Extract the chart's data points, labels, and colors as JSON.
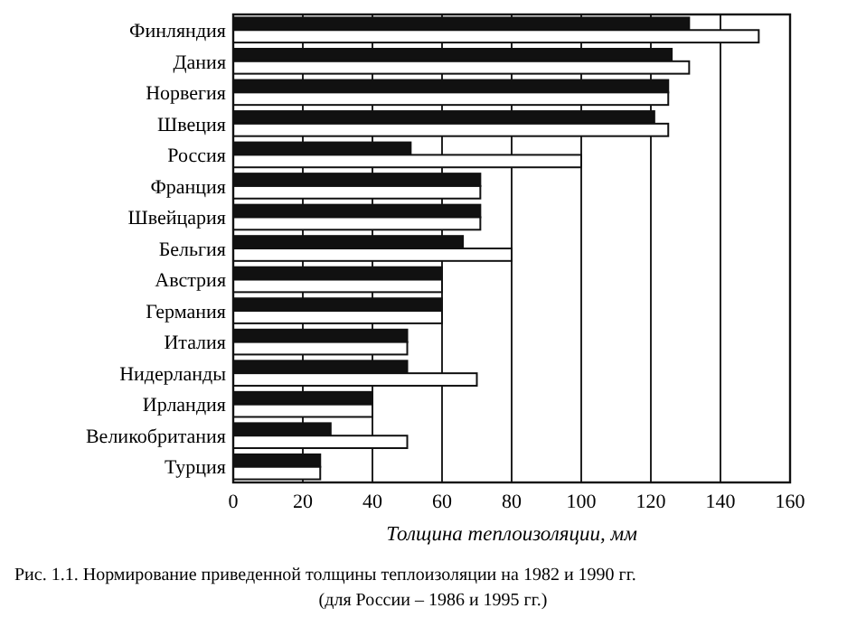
{
  "chart_data": {
    "type": "bar",
    "orientation": "horizontal",
    "categories": [
      "Финляндия",
      "Дания",
      "Норвегия",
      "Швеция",
      "Россия",
      "Франция",
      "Швейцария",
      "Бельгия",
      "Австрия",
      "Германия",
      "Италия",
      "Нидерланды",
      "Ирландия",
      "Великобритания",
      "Турция"
    ],
    "series": [
      {
        "color": "#111111",
        "values": [
          131,
          126,
          125,
          121,
          51,
          71,
          71,
          66,
          60,
          60,
          50,
          50,
          40,
          28,
          25
        ]
      },
      {
        "color": "#ffffff",
        "values": [
          151,
          131,
          125,
          125,
          100,
          71,
          71,
          80,
          60,
          60,
          50,
          70,
          40,
          50,
          25
        ]
      }
    ],
    "xlabel": "Толщина теплоизоляции, мм",
    "xlim": [
      0,
      160
    ],
    "xticks": [
      0,
      20,
      40,
      60,
      80,
      100,
      120,
      140,
      160
    ],
    "grid": "x",
    "annotations": [
      "Рис. 1.1. Нормирование приведенной толщины теплоизоляции на 1982 и 1990 гг.",
      "(для России – 1986 и 1995 гг.)"
    ]
  }
}
